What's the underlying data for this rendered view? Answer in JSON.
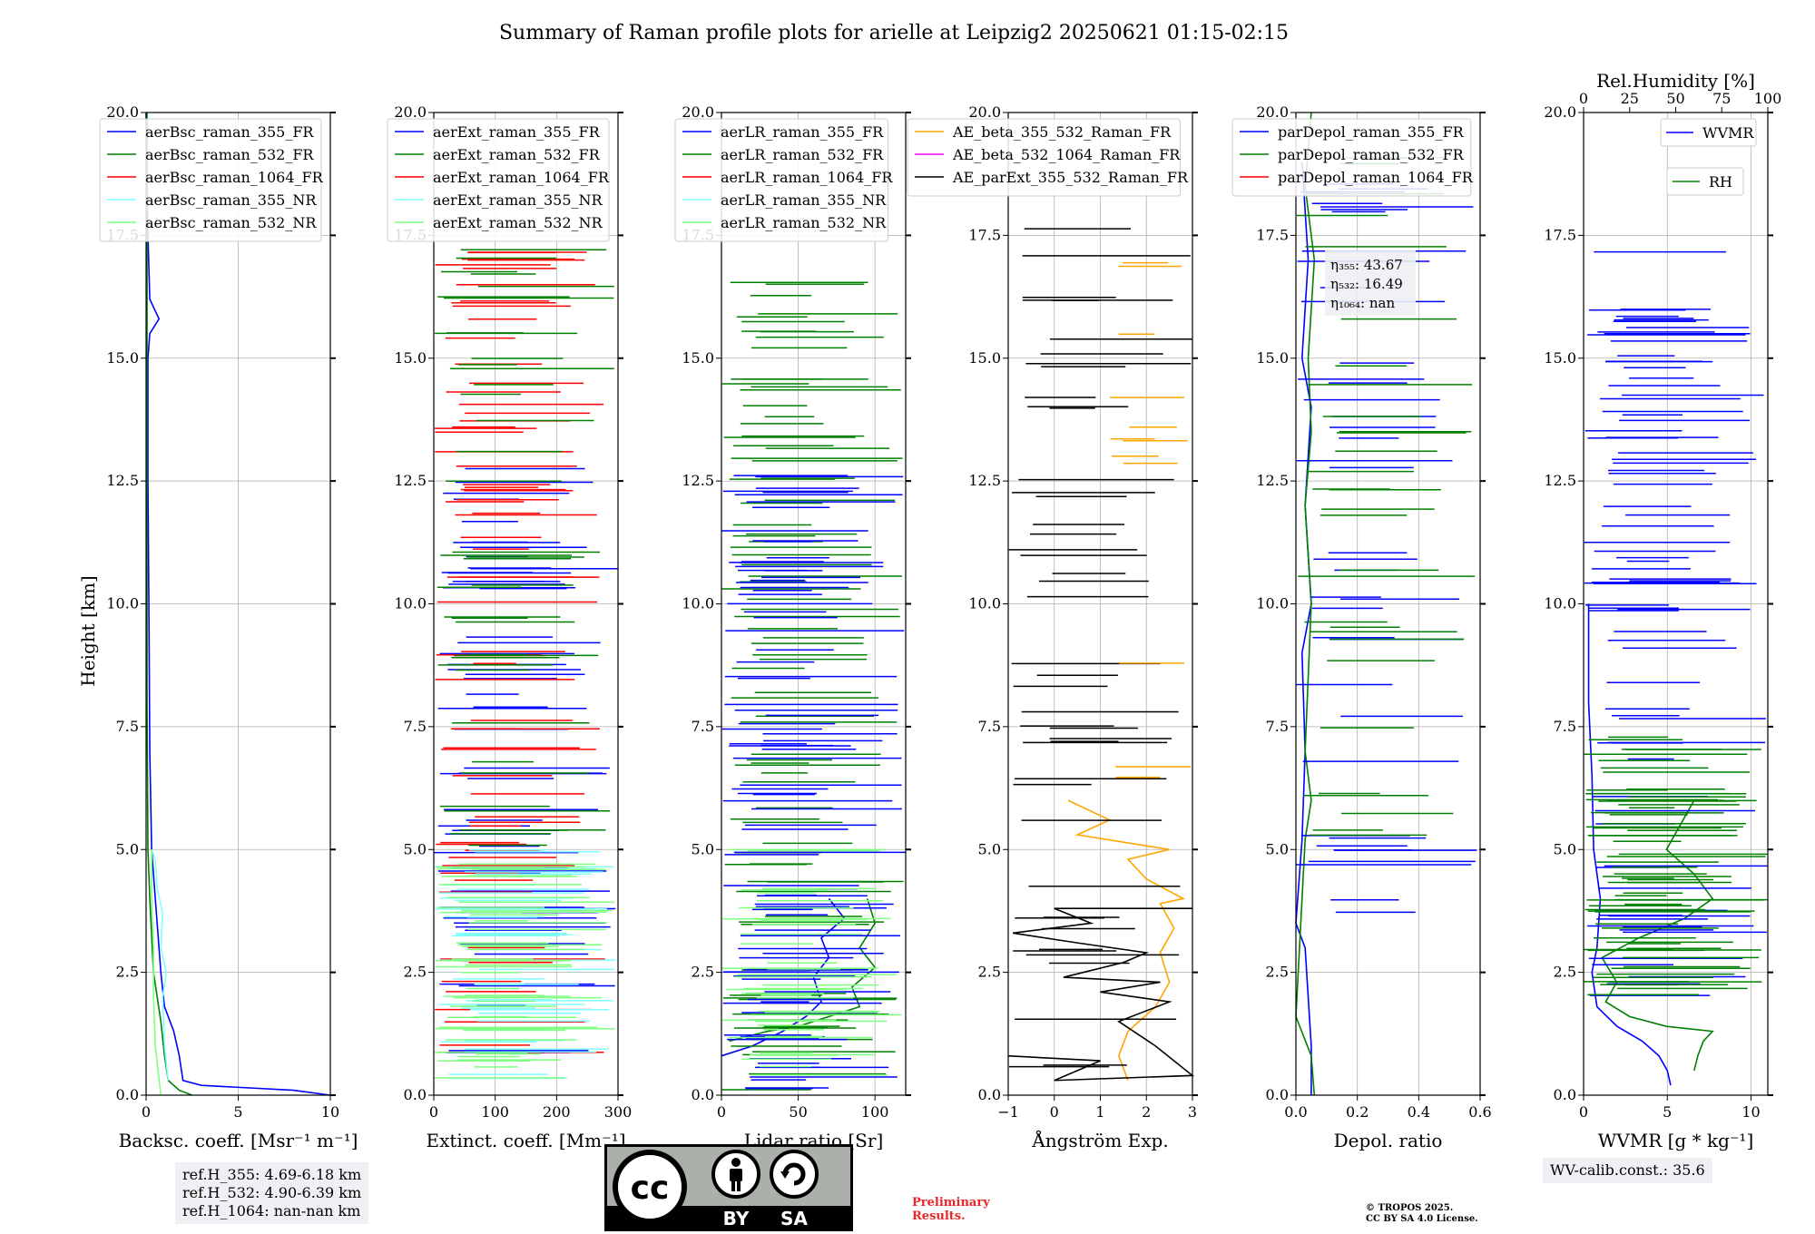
{
  "title": "Summary of Raman profile plots for arielle at Leipzig2 20250621 01:15-02:15",
  "colors": {
    "blue": "#0000ff",
    "green": "#008000",
    "red": "#ff0000",
    "cyan": "#80ffff",
    "lightgreen": "#80ff80",
    "orange": "#ffa500",
    "magenta": "#ff00ff",
    "black": "#000000"
  },
  "chart_data": [
    {
      "type": "line",
      "ylabel": "Height [km]",
      "xlabel": "Backsc. coeff. [Msr⁻¹ m⁻¹]",
      "xlim": [
        0,
        10
      ],
      "ylim": [
        0,
        20
      ],
      "xticks": [
        "0",
        "5",
        "10"
      ],
      "yticks": [
        "0.0",
        "2.5",
        "5.0",
        "7.5",
        "10.0",
        "12.5",
        "15.0",
        "17.5",
        "20.0"
      ],
      "legend": "top-left",
      "series": [
        {
          "name": "aerBsc_raman_355_FR",
          "color": "blue",
          "points": [
            [
              10,
              0
            ],
            [
              8,
              0.1
            ],
            [
              3,
              0.2
            ],
            [
              2,
              0.3
            ],
            [
              1.8,
              0.8
            ],
            [
              1.5,
              1.3
            ],
            [
              1.0,
              1.8
            ],
            [
              0.8,
              2.5
            ],
            [
              0.6,
              3.5
            ],
            [
              0.4,
              4.5
            ],
            [
              0.3,
              5.0
            ],
            [
              0.2,
              7.0
            ],
            [
              0.15,
              10.0
            ],
            [
              0.1,
              12.5
            ],
            [
              0.1,
              15.0
            ],
            [
              0.2,
              15.5
            ],
            [
              0.7,
              15.8
            ],
            [
              0.2,
              16.2
            ],
            [
              0.1,
              17.5
            ],
            [
              0,
              20
            ]
          ]
        },
        {
          "name": "aerBsc_raman_532_FR",
          "color": "green",
          "points": [
            [
              2.5,
              0
            ],
            [
              1.8,
              0.1
            ],
            [
              1.2,
              0.3
            ],
            [
              1.0,
              0.8
            ],
            [
              0.8,
              1.5
            ],
            [
              0.4,
              2.5
            ],
            [
              0.2,
              4.0
            ],
            [
              0.1,
              5.0
            ],
            [
              0.05,
              8.0
            ],
            [
              0.05,
              12.5
            ],
            [
              0.05,
              15.0
            ],
            [
              0.05,
              20
            ]
          ]
        },
        {
          "name": "aerBsc_raman_1064_FR",
          "color": "red",
          "points": []
        },
        {
          "name": "aerBsc_raman_355_NR",
          "color": "cyan",
          "points": [
            [
              1.2,
              0.3
            ],
            [
              1.0,
              1.0
            ],
            [
              0.9,
              2.0
            ],
            [
              1.1,
              2.5
            ],
            [
              0.8,
              3.0
            ],
            [
              0.9,
              3.7
            ],
            [
              0.6,
              4.2
            ],
            [
              0.5,
              4.8
            ],
            [
              0.3,
              5.0
            ]
          ]
        },
        {
          "name": "aerBsc_raman_532_NR",
          "color": "lightgreen",
          "points": [
            [
              0.8,
              0
            ],
            [
              0.5,
              1.0
            ],
            [
              0.4,
              2.0
            ],
            [
              0.4,
              3.0
            ],
            [
              0.3,
              4.0
            ],
            [
              0.3,
              5.0
            ]
          ]
        }
      ]
    },
    {
      "type": "line",
      "xlabel": "Extinct. coeff. [Mm⁻¹]",
      "xlim": [
        0,
        300
      ],
      "ylim": [
        0,
        20
      ],
      "xticks": [
        "0",
        "100",
        "200",
        "300"
      ],
      "yticks": [
        "0.0",
        "2.5",
        "5.0",
        "7.5",
        "10.0",
        "12.5",
        "15.0",
        "17.5",
        "20.0"
      ],
      "legend": "top-left",
      "series": [
        {
          "name": "aerExt_raman_355_FR",
          "color": "blue",
          "points": []
        },
        {
          "name": "aerExt_raman_532_FR",
          "color": "green",
          "points": []
        },
        {
          "name": "aerExt_raman_1064_FR",
          "color": "red",
          "points": []
        },
        {
          "name": "aerExt_raman_355_NR",
          "color": "cyan",
          "points": []
        },
        {
          "name": "aerExt_raman_532_NR",
          "color": "lightgreen",
          "points": []
        }
      ]
    },
    {
      "type": "line",
      "xlabel": "Lidar ratio [Sr]",
      "xlim": [
        0,
        120
      ],
      "ylim": [
        0,
        20
      ],
      "xticks": [
        "0",
        "50",
        "100"
      ],
      "yticks": [
        "0.0",
        "2.5",
        "5.0",
        "7.5",
        "10.0",
        "12.5",
        "15.0",
        "17.5",
        "20.0"
      ],
      "legend": "top-left",
      "series": [
        {
          "name": "aerLR_raman_355_FR",
          "color": "blue",
          "points": [
            [
              0,
              0.8
            ],
            [
              20,
              1.0
            ],
            [
              40,
              1.3
            ],
            [
              55,
              1.6
            ],
            [
              65,
              1.9
            ],
            [
              60,
              2.4
            ],
            [
              70,
              2.8
            ],
            [
              65,
              3.2
            ],
            [
              80,
              3.6
            ],
            [
              70,
              4.0
            ]
          ]
        },
        {
          "name": "aerLR_raman_532_FR",
          "color": "green",
          "points": [
            [
              5,
              1.1
            ],
            [
              30,
              1.3
            ],
            [
              50,
              1.4
            ],
            [
              70,
              1.6
            ],
            [
              90,
              1.8
            ],
            [
              85,
              2.2
            ],
            [
              100,
              2.6
            ],
            [
              90,
              3.0
            ],
            [
              100,
              3.5
            ],
            [
              95,
              4.0
            ]
          ]
        },
        {
          "name": "aerLR_raman_1064_FR",
          "color": "red",
          "points": []
        },
        {
          "name": "aerLR_raman_355_NR",
          "color": "cyan",
          "points": []
        },
        {
          "name": "aerLR_raman_532_NR",
          "color": "lightgreen",
          "points": []
        }
      ]
    },
    {
      "type": "line",
      "xlabel": "Ångström Exp.",
      "xlim": [
        -1,
        3
      ],
      "ylim": [
        0,
        20
      ],
      "xticks": [
        "−1",
        "0",
        "1",
        "2",
        "3"
      ],
      "yticks": [
        "0.0",
        "2.5",
        "5.0",
        "7.5",
        "10.0",
        "12.5",
        "15.0",
        "17.5",
        "20.0"
      ],
      "legend": "top-left",
      "series": [
        {
          "name": "AE_beta_355_532_Raman_FR",
          "color": "orange",
          "points": [
            [
              1.6,
              0.3
            ],
            [
              1.4,
              0.8
            ],
            [
              1.6,
              1.3
            ],
            [
              2.2,
              1.8
            ],
            [
              2.5,
              2.3
            ],
            [
              2.3,
              2.9
            ],
            [
              2.6,
              3.4
            ],
            [
              2.3,
              3.9
            ],
            [
              2.8,
              4.0
            ],
            [
              2.0,
              4.4
            ],
            [
              1.6,
              4.8
            ],
            [
              2.5,
              5.0
            ],
            [
              0.5,
              5.3
            ],
            [
              1.2,
              5.6
            ],
            [
              0.3,
              6.0
            ]
          ]
        },
        {
          "name": "AE_beta_532_1064_Raman_FR",
          "color": "magenta",
          "points": []
        },
        {
          "name": "AE_parExt_355_532_Raman_FR",
          "color": "black",
          "points": [
            [
              -1,
              0.8
            ],
            [
              1,
              0.7
            ],
            [
              0,
              0.3
            ],
            [
              3,
              0.4
            ],
            [
              2.2,
              1.0
            ],
            [
              1.4,
              1.5
            ],
            [
              2.5,
              1.9
            ],
            [
              1.0,
              2.1
            ],
            [
              2.3,
              2.3
            ],
            [
              0.2,
              2.4
            ],
            [
              1.5,
              2.7
            ],
            [
              2.0,
              2.9
            ],
            [
              0.5,
              3.1
            ],
            [
              -0.9,
              3.3
            ],
            [
              0.8,
              3.5
            ],
            [
              0,
              3.8
            ],
            [
              3,
              3.8
            ]
          ]
        }
      ]
    },
    {
      "type": "line",
      "xlabel": "Depol. ratio",
      "xlim": [
        0,
        0.6
      ],
      "ylim": [
        0,
        20
      ],
      "xticks": [
        "0.0",
        "0.2",
        "0.4",
        "0.6"
      ],
      "yticks": [
        "0.0",
        "2.5",
        "5.0",
        "7.5",
        "10.0",
        "12.5",
        "15.0",
        "17.5",
        "20.0"
      ],
      "legend": "top-left",
      "series": [
        {
          "name": "parDepol_raman_355_FR",
          "color": "blue",
          "points": [
            [
              0.05,
              0
            ],
            [
              0.05,
              1.0
            ],
            [
              0.04,
              2.0
            ],
            [
              0.03,
              3.0
            ],
            [
              0.0,
              3.5
            ],
            [
              0.02,
              5.2
            ],
            [
              0.03,
              7.0
            ],
            [
              0.02,
              9.0
            ],
            [
              0.05,
              10.0
            ],
            [
              0.03,
              12.0
            ],
            [
              0.05,
              14.0
            ],
            [
              0.02,
              15.0
            ],
            [
              0.04,
              17.0
            ],
            [
              0.02,
              19.0
            ]
          ]
        },
        {
          "name": "parDepol_raman_532_FR",
          "color": "green",
          "points": [
            [
              0.06,
              0
            ],
            [
              0.05,
              0.8
            ],
            [
              0.0,
              1.6
            ],
            [
              0.03,
              5.2
            ],
            [
              0.05,
              6.0
            ],
            [
              0.03,
              7.0
            ],
            [
              0.05,
              10.0
            ],
            [
              0.03,
              12.0
            ],
            [
              0.05,
              13.5
            ],
            [
              0.04,
              15.0
            ],
            [
              0.06,
              17.0
            ],
            [
              0.03,
              18.5
            ],
            [
              0.05,
              20.0
            ]
          ]
        },
        {
          "name": "parDepol_raman_1064_FR",
          "color": "red",
          "points": []
        }
      ],
      "annotations": [
        {
          "label": "η₃₅₅: 43.67"
        },
        {
          "label": "η₅₃₂: 16.49"
        },
        {
          "label": "η₁₀₆₄: nan"
        }
      ]
    },
    {
      "type": "line",
      "xlabel": "WVMR [g * kg⁻¹]",
      "x2label": "Rel.Humidity [%]",
      "xlim": [
        0,
        11
      ],
      "x2lim": [
        0,
        100
      ],
      "ylim": [
        0,
        20
      ],
      "xticks": [
        "0",
        "5",
        "10"
      ],
      "x2ticks": [
        "0",
        "25",
        "50",
        "75",
        "100"
      ],
      "yticks": [
        "0.0",
        "2.5",
        "5.0",
        "7.5",
        "10.0",
        "12.5",
        "15.0",
        "17.5",
        "20.0"
      ],
      "legends": [
        "WVMR",
        "RH"
      ],
      "series": [
        {
          "name": "WVMR",
          "color": "blue",
          "points": [
            [
              5.2,
              0.2
            ],
            [
              5.0,
              0.5
            ],
            [
              4.5,
              0.8
            ],
            [
              3.5,
              1.1
            ],
            [
              2.0,
              1.4
            ],
            [
              0.8,
              1.8
            ],
            [
              0.5,
              2.5
            ],
            [
              0.8,
              3.0
            ],
            [
              1.0,
              4.0
            ],
            [
              0.6,
              5.0
            ],
            [
              0.5,
              6.5
            ],
            [
              0.3,
              8.0
            ],
            [
              0.3,
              10.0
            ]
          ]
        },
        {
          "name": "RH",
          "color": "green",
          "points": [
            [
              60,
              0.5
            ],
            [
              62,
              0.8
            ],
            [
              65,
              1.1
            ],
            [
              70,
              1.3
            ],
            [
              45,
              1.4
            ],
            [
              25,
              1.6
            ],
            [
              12,
              1.9
            ],
            [
              18,
              2.3
            ],
            [
              10,
              2.8
            ],
            [
              30,
              3.2
            ],
            [
              55,
              3.6
            ],
            [
              70,
              4.0
            ],
            [
              60,
              4.5
            ],
            [
              45,
              5.0
            ],
            [
              60,
              6.0
            ]
          ]
        }
      ]
    }
  ],
  "notes": {
    "ref": [
      "ref.H_355: 4.69-6.18 km",
      "ref.H_532: 4.90-6.39 km",
      "ref.H_1064: nan-nan km"
    ],
    "wv_calib": "WV-calib.const.: 35.6",
    "preliminary": [
      "Preliminary",
      "Results."
    ],
    "copyright": [
      "© TROPOS 2025.",
      "CC BY SA 4.0 License."
    ],
    "cc": {
      "badge": "cc",
      "by": "BY",
      "sa": "SA"
    }
  }
}
